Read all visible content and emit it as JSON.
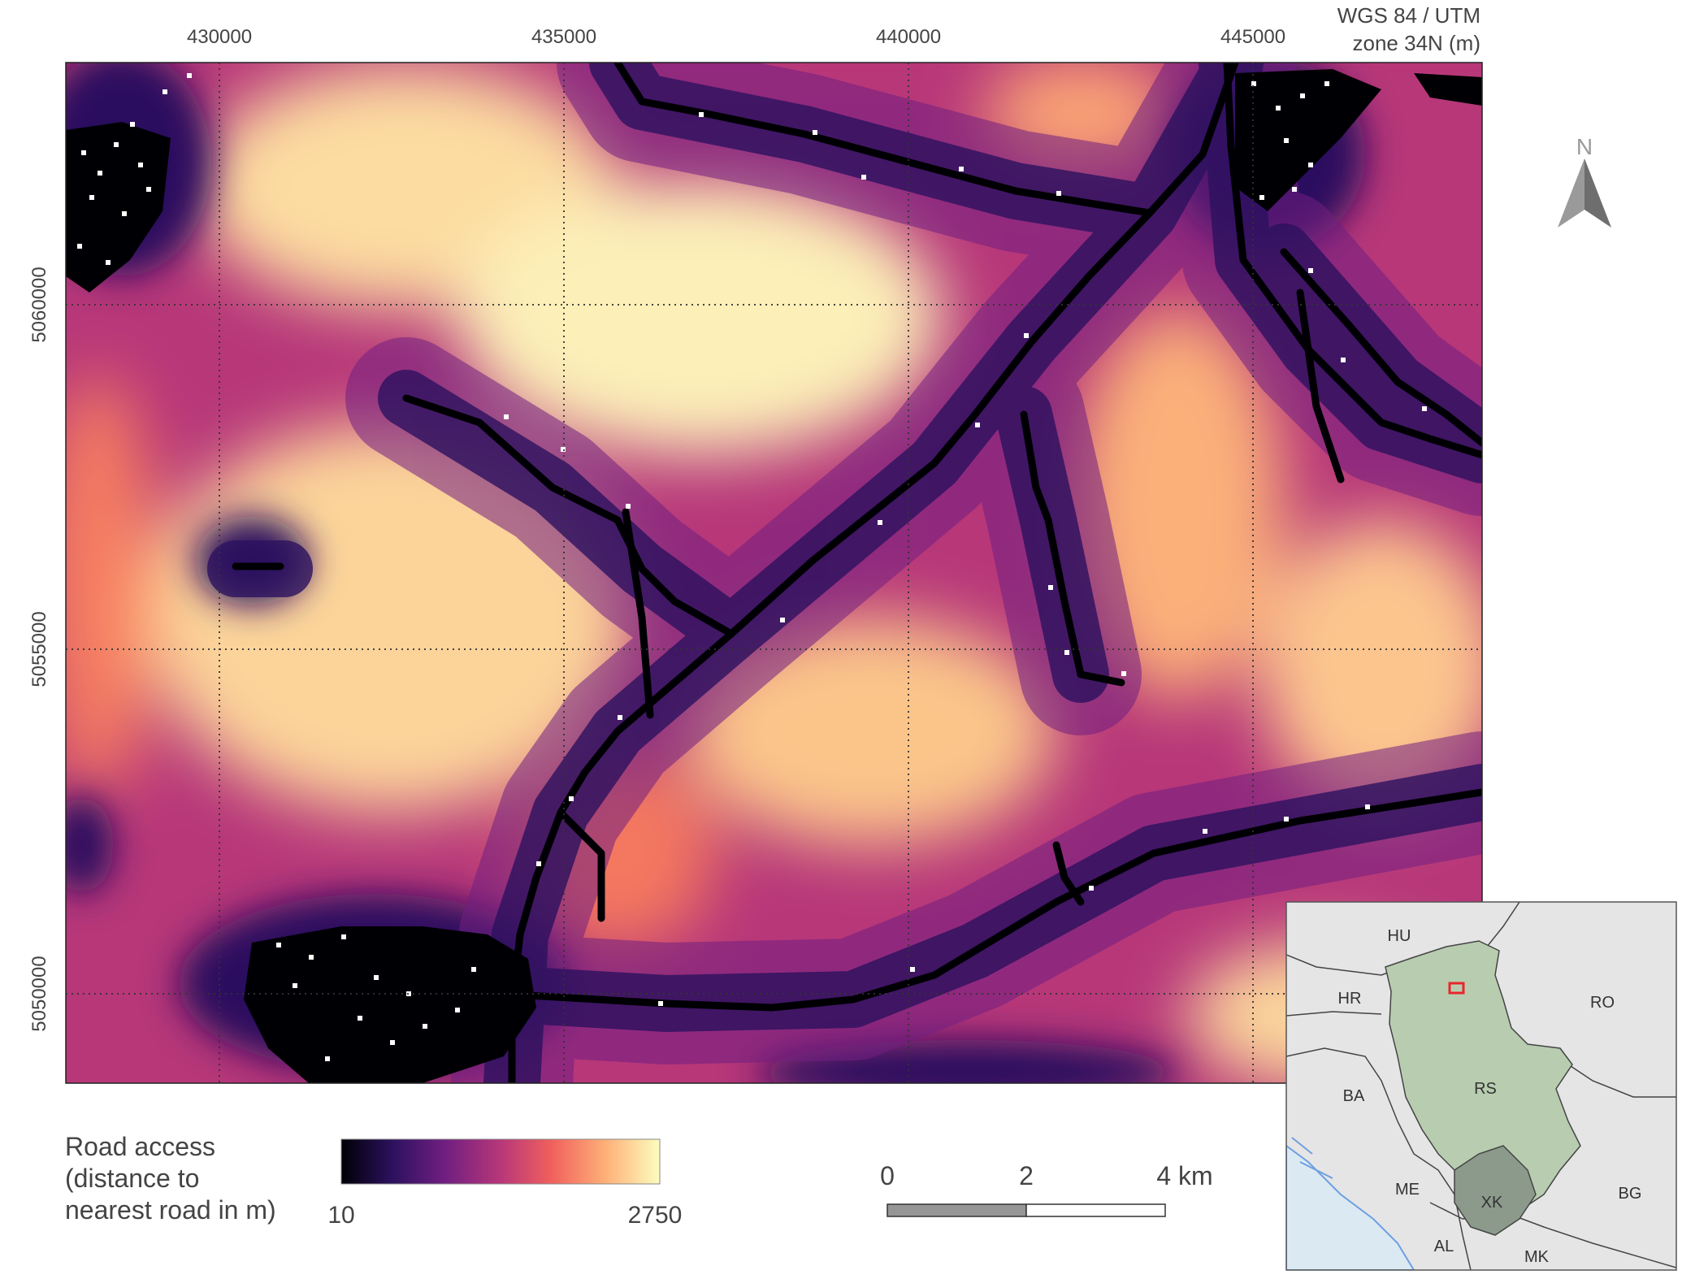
{
  "crs": {
    "line1": "WGS 84 / UTM",
    "line2": "zone 34N (m)"
  },
  "x_ticks": [
    "430000",
    "435000",
    "440000",
    "445000"
  ],
  "y_ticks": [
    "5060000",
    "5055000",
    "5050000"
  ],
  "north_arrow": {
    "label": "N",
    "icon": "north-arrow-icon"
  },
  "legend": {
    "title_lines": [
      "Road access",
      "(distance to",
      "nearest road in m)"
    ],
    "min": "10",
    "max": "2750",
    "colors": [
      "#000004",
      "#2c115f",
      "#721f81",
      "#b73779",
      "#f1605d",
      "#feb078",
      "#fcfdbf"
    ]
  },
  "scale_bar": {
    "labels": [
      "0",
      "2",
      "4 km"
    ],
    "fill_colors": [
      "#969696",
      "#ffffff"
    ]
  },
  "inset": {
    "country_labels": [
      "HU",
      "HR",
      "RO",
      "BA",
      "RS",
      "ME",
      "BG",
      "XK",
      "AL",
      "MK"
    ],
    "colors": {
      "serbia": "#b8cdb0",
      "kosovo": "#8c9a8c",
      "other": "#e5e5e5",
      "sea": "#dbe9f3",
      "extent": "#e8262b"
    }
  }
}
